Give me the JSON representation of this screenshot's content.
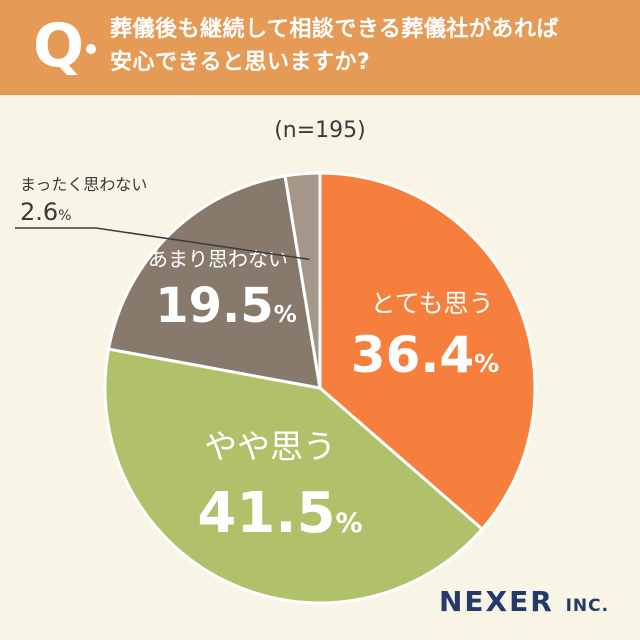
{
  "header": {
    "q_mark": "Q",
    "question_line1": "葬儀後も継続して相談できる葬儀社があれば",
    "question_line2": "安心できると思いますか?"
  },
  "sample_size": "(n=195)",
  "colors": {
    "header_bg": "#e59a56",
    "page_bg": "#f8f5e6",
    "slice_1": "#f67f3e",
    "slice_2": "#b1c16a",
    "slice_3": "#877a6c",
    "slice_4": "#a49688",
    "logo": "#233a6b"
  },
  "chart_data": {
    "type": "pie",
    "title": "葬儀後も継続して相談できる葬儀社があれば安心できると思いますか?",
    "start": "12 o'clock, clockwise",
    "slices": [
      {
        "label": "とても思う",
        "value": 36.4,
        "display": "36.4",
        "unit": "%"
      },
      {
        "label": "やや思う",
        "value": 41.5,
        "display": "41.5",
        "unit": "%"
      },
      {
        "label": "あまり思わない",
        "value": 19.5,
        "display": "19.5",
        "unit": "%"
      },
      {
        "label": "まったく思わない",
        "value": 2.6,
        "display": "2.6",
        "unit": "%"
      }
    ]
  },
  "logo": {
    "name": "NEXER",
    "suffix": "INC."
  }
}
